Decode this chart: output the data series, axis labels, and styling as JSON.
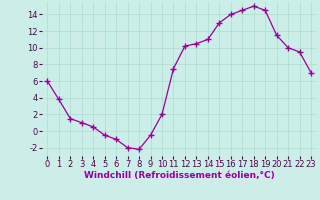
{
  "hours": [
    0,
    1,
    2,
    3,
    4,
    5,
    6,
    7,
    8,
    9,
    10,
    11,
    12,
    13,
    14,
    15,
    16,
    17,
    18,
    19,
    20,
    21,
    22,
    23
  ],
  "values": [
    6.0,
    3.8,
    1.5,
    1.0,
    0.5,
    -0.5,
    -1.0,
    -2.0,
    -2.2,
    -0.5,
    2.0,
    7.5,
    10.2,
    10.5,
    11.0,
    13.0,
    14.0,
    14.5,
    15.0,
    14.5,
    11.5,
    10.0,
    9.5,
    7.0
  ],
  "line_color": "#990099",
  "marker": "+",
  "bg_color": "#cceee8",
  "grid_color": "#aaddcc",
  "xlabel": "Windchill (Refroidissement éolien,°C)",
  "ylim": [
    -3,
    15.5
  ],
  "xlim": [
    -0.5,
    23.5
  ],
  "yticks": [
    -2,
    0,
    2,
    4,
    6,
    8,
    10,
    12,
    14
  ],
  "xticks": [
    0,
    1,
    2,
    3,
    4,
    5,
    6,
    7,
    8,
    9,
    10,
    11,
    12,
    13,
    14,
    15,
    16,
    17,
    18,
    19,
    20,
    21,
    22,
    23
  ],
  "tick_fontsize": 6,
  "xlabel_fontsize": 6.5
}
